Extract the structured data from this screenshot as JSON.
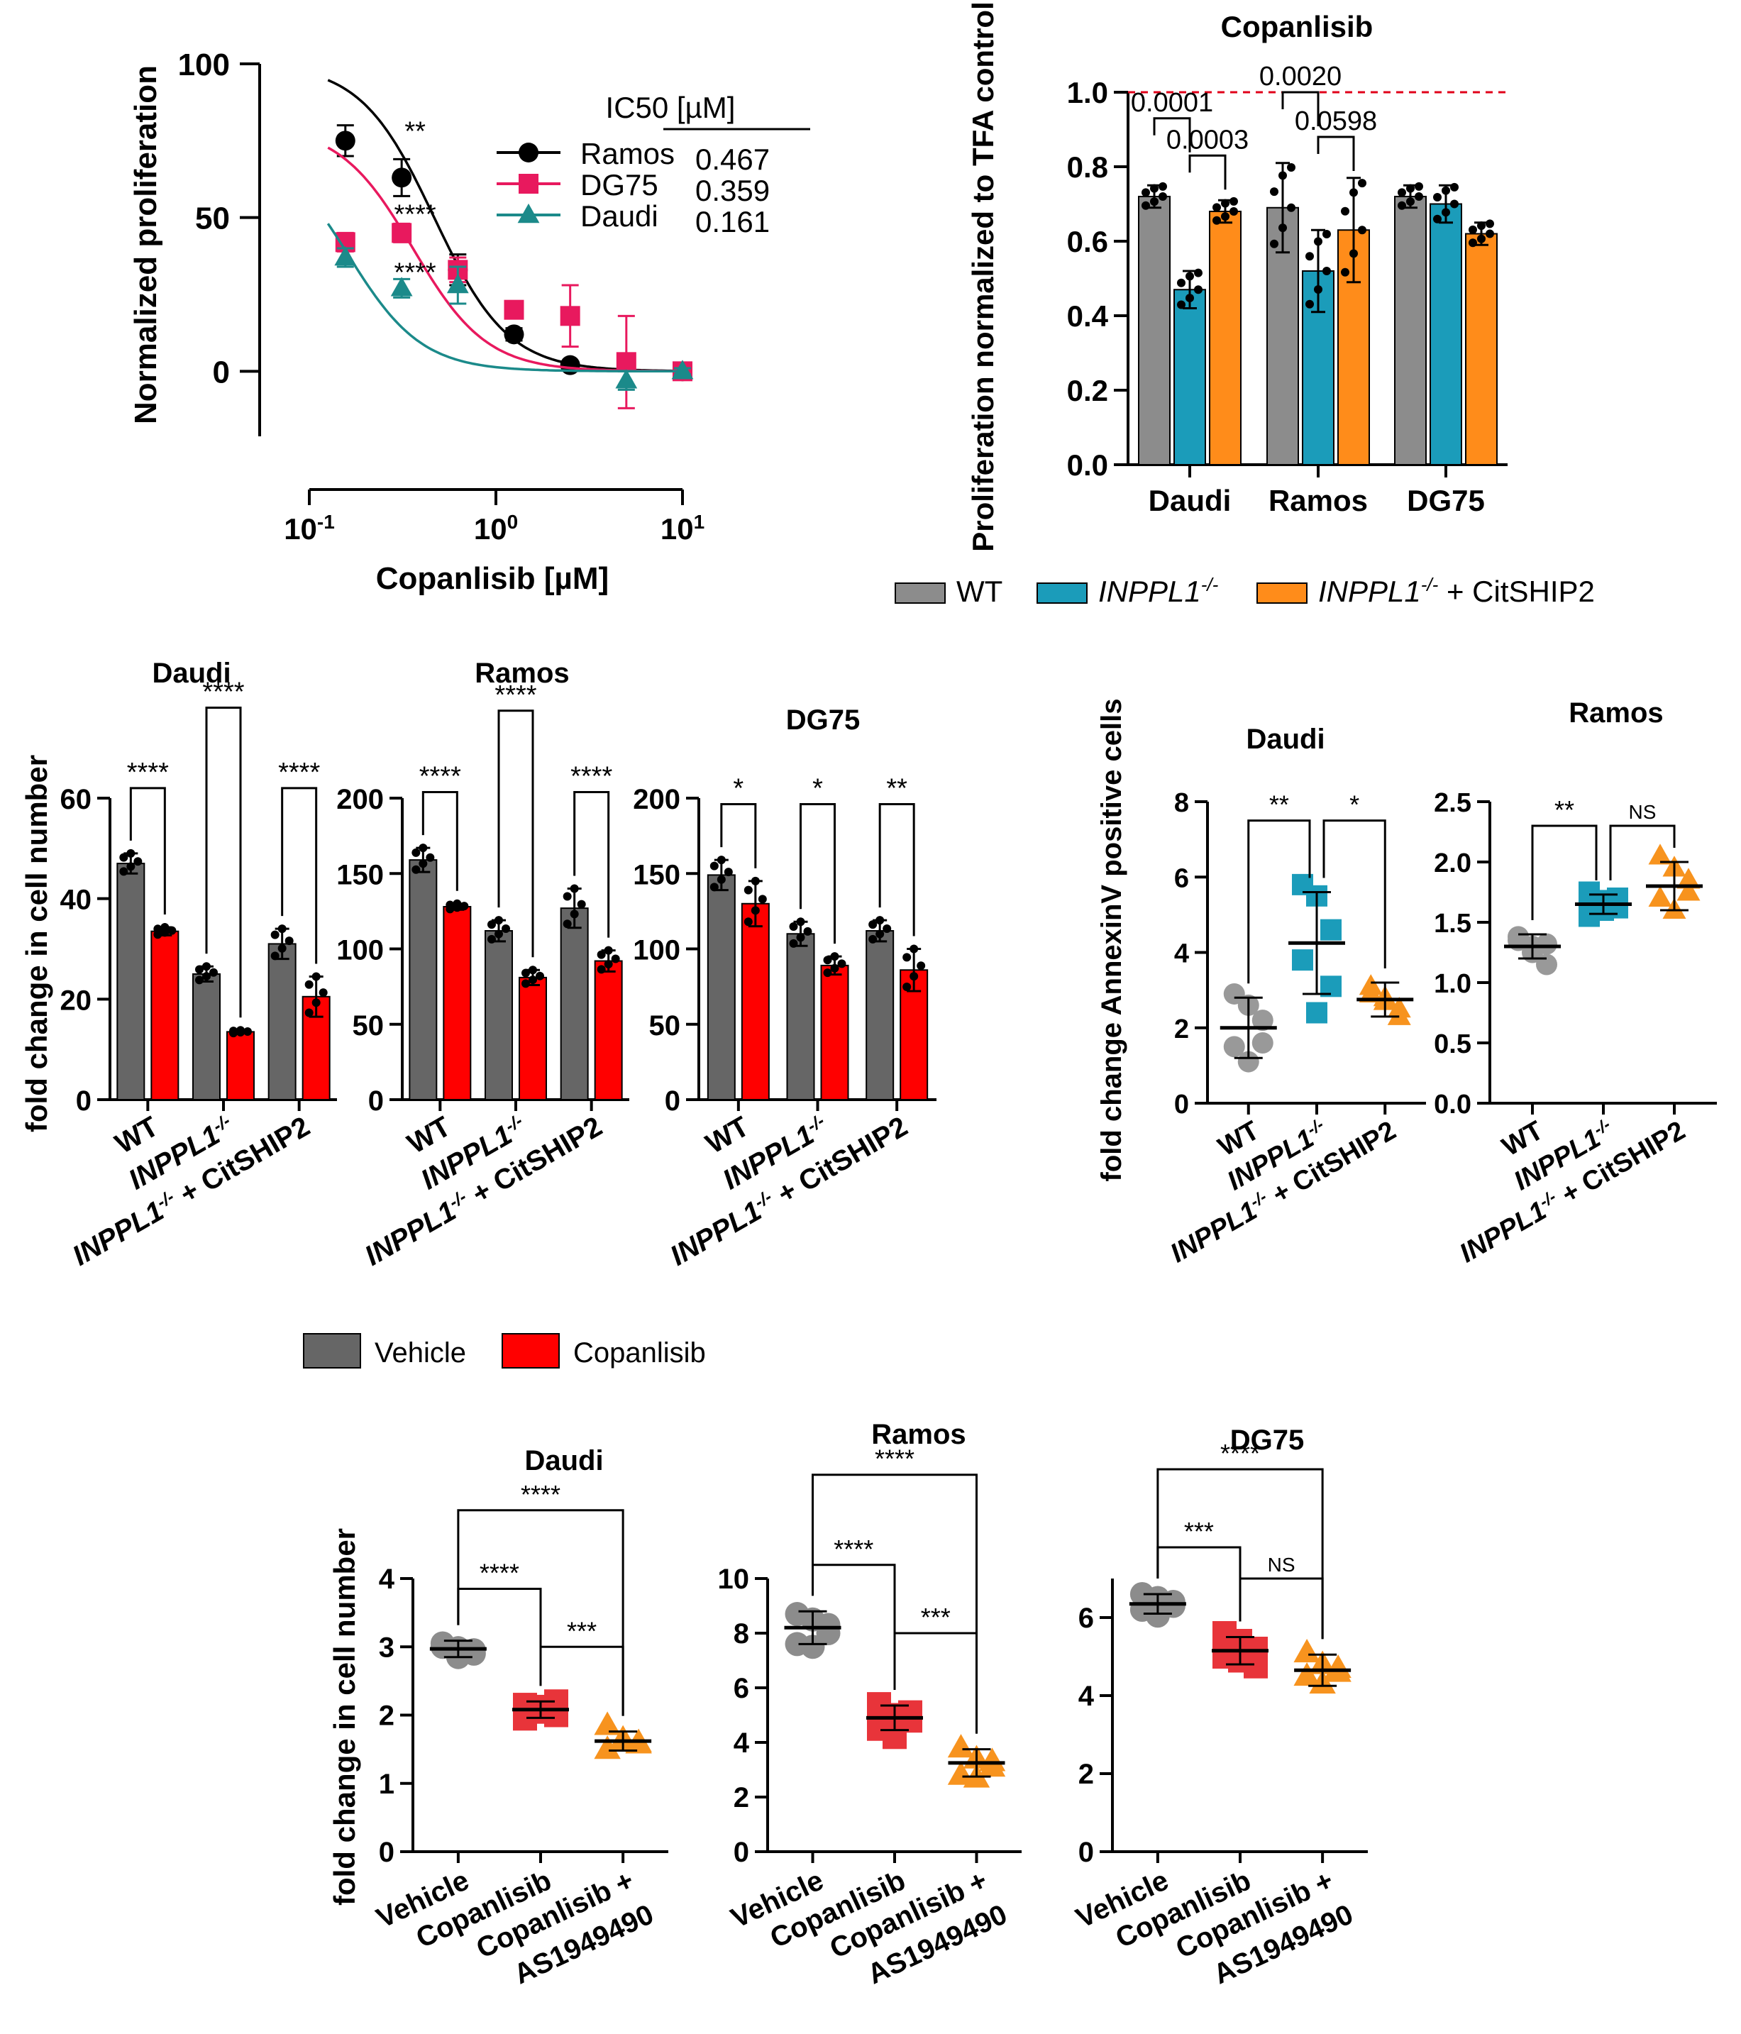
{
  "chart_data": [
    {
      "id": "ic50",
      "type": "scatter",
      "xscale": "log",
      "xlabel": "Copanlisib [µM]",
      "ylabel": "Normalized proliferation",
      "xlim": [
        0.1,
        10
      ],
      "ylim": [
        -20,
        100
      ],
      "yticks": [
        0,
        50,
        100
      ],
      "xticks": [
        {
          "base": "10",
          "exp": "-1"
        },
        {
          "base": "10",
          "exp": "0"
        },
        {
          "base": "10",
          "exp": "1"
        }
      ],
      "legend_header": "IC50 [µM]",
      "series": [
        {
          "name": "Ramos",
          "ic50": "0.467",
          "ic50_num": 0.467,
          "color": "#000000",
          "marker": "circle",
          "top": 100,
          "points": [
            [
              0.156,
              75,
              5
            ],
            [
              0.3125,
              63,
              6
            ],
            [
              0.625,
              33,
              5
            ],
            [
              1.25,
              12,
              2
            ],
            [
              2.5,
              2,
              1
            ],
            [
              10,
              0,
              1
            ]
          ]
        },
        {
          "name": "DG75",
          "ic50": "0.359",
          "ic50_num": 0.359,
          "color": "#e8195e",
          "marker": "square",
          "top": 80,
          "points": [
            [
              0.156,
              42,
              3
            ],
            [
              0.3125,
              45,
              3
            ],
            [
              0.625,
              33,
              4
            ],
            [
              1.25,
              20,
              2
            ],
            [
              2.5,
              18,
              10
            ],
            [
              5,
              3,
              15
            ],
            [
              10,
              0,
              1
            ]
          ]
        },
        {
          "name": "Daudi",
          "ic50": "0.161",
          "ic50_num": 0.161,
          "color": "#1b8a8a",
          "marker": "triangle",
          "top": 76,
          "points": [
            [
              0.156,
              37,
              3
            ],
            [
              0.3125,
              27,
              3
            ],
            [
              0.625,
              28,
              6
            ],
            [
              5,
              -3,
              3
            ],
            [
              10,
              0,
              1
            ]
          ]
        }
      ],
      "annotations": [
        {
          "text": "**",
          "x": 0.26,
          "y": 78
        },
        {
          "text": "****",
          "x": 0.26,
          "y": 51
        },
        {
          "text": "****",
          "x": 0.26,
          "y": 32
        }
      ]
    },
    {
      "id": "copanlisib_bars",
      "type": "bar",
      "title": "Copanlisib",
      "ylabel": "Proliferation normalized to TFA control",
      "ylim": [
        0,
        1.0
      ],
      "yticks": [
        "0.0",
        "0.2",
        "0.4",
        "0.6",
        "0.8",
        "1.0"
      ],
      "categories": [
        "Daudi",
        "Ramos",
        "DG75"
      ],
      "series": [
        {
          "name": "WT",
          "color": "#8c8c8c",
          "values": [
            0.72,
            0.69,
            0.72
          ],
          "err": [
            0.03,
            0.12,
            0.03
          ]
        },
        {
          "name": "INPPL1",
          "color": "#1b9cba",
          "values": [
            0.47,
            0.52,
            0.7
          ],
          "err": [
            0.05,
            0.11,
            0.05
          ]
        },
        {
          "name": "INPPL1 + CitSHIP2",
          "color": "#ff8c1a",
          "values": [
            0.68,
            0.63,
            0.62
          ],
          "err": [
            0.03,
            0.14,
            0.03
          ]
        }
      ],
      "pvalues": [
        {
          "text": "0.0001",
          "from": [
            0,
            0
          ],
          "to": [
            0,
            1
          ],
          "level": 0.93
        },
        {
          "text": "0.0003",
          "from": [
            0,
            1
          ],
          "to": [
            0,
            2
          ],
          "level": 0.83
        },
        {
          "text": "0.0020",
          "from": [
            1,
            0
          ],
          "to": [
            1,
            1
          ],
          "level": 1.0
        },
        {
          "text": "0.0598",
          "from": [
            1,
            1
          ],
          "to": [
            1,
            2
          ],
          "level": 0.88
        }
      ],
      "reference_line": 1.0,
      "legend": [
        {
          "main": "WT",
          "sup": "",
          "suffix": "",
          "color": "#8c8c8c"
        },
        {
          "main": "INPPL1",
          "sup": "-/-",
          "suffix": "",
          "color": "#1b9cba"
        },
        {
          "main": "INPPL1",
          "sup": "-/-",
          "suffix": " + CitSHIP2",
          "color": "#ff8c1a"
        }
      ]
    },
    {
      "id": "fold_change_bars",
      "type": "bar",
      "ylabel": "fold change in cell number",
      "genotype_labels": [
        {
          "main": "WT",
          "sup": "",
          "suffix": ""
        },
        {
          "main": "INPPL1",
          "sup": "-/-",
          "suffix": ""
        },
        {
          "main": "INPPL1",
          "sup": "-/-",
          "suffix": " + CitSHIP2"
        }
      ],
      "legend": [
        {
          "name": "Vehicle",
          "color": "#666666"
        },
        {
          "name": "Copanlisib",
          "color": "#ff0000"
        }
      ],
      "panels": [
        {
          "title": "Daudi",
          "ylim": [
            0,
            60
          ],
          "yticks": [
            "0",
            "20",
            "40",
            "60"
          ],
          "vehicle": [
            47,
            25,
            31
          ],
          "vehicle_err": [
            2,
            1.5,
            3
          ],
          "copanlisib": [
            33.5,
            13.5,
            20.5
          ],
          "copanlisib_err": [
            0.8,
            0.3,
            4
          ],
          "sig": [
            "****",
            "****",
            "****"
          ],
          "sig_top": [
            62,
            78,
            62
          ]
        },
        {
          "title": "Ramos",
          "ylim": [
            0,
            200
          ],
          "yticks": [
            "0",
            "50",
            "100",
            "150",
            "200"
          ],
          "vehicle": [
            159,
            112,
            127
          ],
          "vehicle_err": [
            8,
            7,
            13
          ],
          "copanlisib": [
            128,
            81,
            92
          ],
          "copanlisib_err": [
            2,
            5,
            7
          ],
          "sig": [
            "****",
            "****",
            "****"
          ],
          "sig_top": [
            204,
            258,
            204
          ]
        },
        {
          "title": "DG75",
          "ylim": [
            0,
            200
          ],
          "yticks": [
            "0",
            "50",
            "100",
            "150",
            "200"
          ],
          "vehicle": [
            149,
            110,
            112
          ],
          "vehicle_err": [
            10,
            8,
            7
          ],
          "copanlisib": [
            130,
            89,
            86
          ],
          "copanlisib_err": [
            15,
            6,
            14
          ],
          "sig": [
            "*",
            "*",
            "**"
          ],
          "sig_top": [
            196,
            196,
            196
          ]
        }
      ]
    },
    {
      "id": "annexin_scatter",
      "type": "scatter",
      "ylabel": "fold change AnnexinV positive cells",
      "genotype_labels": [
        {
          "main": "WT",
          "sup": "",
          "suffix": ""
        },
        {
          "main": "INPPL1",
          "sup": "-/-",
          "suffix": ""
        },
        {
          "main": "INPPL1",
          "sup": "-/-",
          "suffix": " + CitSHIP2"
        }
      ],
      "colors": [
        "#999999",
        "#1b9cba",
        "#f7931e"
      ],
      "panels": [
        {
          "title": "Daudi",
          "ylim": [
            0,
            8
          ],
          "yticks": [
            "0",
            "2",
            "4",
            "6",
            "8"
          ],
          "means": [
            2.0,
            4.25,
            2.75
          ],
          "sds": [
            0.8,
            1.35,
            0.45
          ],
          "points": [
            [
              2.9,
              2.6,
              1.6,
              1.5,
              1.1,
              2.2
            ],
            [
              5.8,
              5.5,
              4.6,
              3.8,
              2.4,
              3.1
            ],
            [
              3.1,
              2.8,
              2.3,
              2.9,
              2.7,
              2.5
            ]
          ],
          "sig": [
            {
              "text": "**",
              "a": 0,
              "b": 1,
              "level": 7.5
            },
            {
              "text": "*",
              "a": 1,
              "b": 2,
              "level": 7.5
            }
          ]
        },
        {
          "title": "Ramos",
          "ylim": [
            0,
            2.5
          ],
          "yticks": [
            "0.0",
            "0.5",
            "1.0",
            "1.5",
            "2.0",
            "2.5"
          ],
          "means": [
            1.3,
            1.65,
            1.8
          ],
          "sds": [
            0.1,
            0.08,
            0.2
          ],
          "points": [
            [
              1.35,
              1.25,
              1.15,
              1.38,
              1.3,
              1.32
            ],
            [
              1.75,
              1.6,
              1.7,
              1.55,
              1.68,
              1.62
            ],
            [
              2.05,
              1.95,
              1.85,
              1.7,
              1.6,
              1.75
            ]
          ],
          "sig": [
            {
              "text": "**",
              "a": 0,
              "b": 1,
              "level": 2.3
            },
            {
              "text": "NS",
              "a": 1,
              "b": 2,
              "level": 2.3
            }
          ]
        }
      ]
    },
    {
      "id": "as1949490_scatter",
      "type": "scatter",
      "ylabel": "fold change in cell number",
      "groups": [
        "Vehicle",
        "Copanlisib",
        "Copanlisib + AS1949490"
      ],
      "group_lines": [
        [
          "Vehicle"
        ],
        [
          "Copanlisib"
        ],
        [
          "Copanlisib +",
          "AS1949490"
        ]
      ],
      "colors": [
        "#8c8c8c",
        "#e8343a",
        "#f7931e"
      ],
      "markers": [
        "circle",
        "square",
        "triangle"
      ],
      "panels": [
        {
          "title": "Daudi",
          "ylim": [
            0,
            4
          ],
          "yticks": [
            "0",
            "1",
            "2",
            "3",
            "4"
          ],
          "means": [
            2.97,
            2.08,
            1.62
          ],
          "sds": [
            0.12,
            0.12,
            0.14
          ],
          "points": [
            [
              3.05,
              2.98,
              2.9,
              3.0,
              2.85,
              2.95
            ],
            [
              2.15,
              2.05,
              2.0,
              1.95,
              2.12,
              2.2
            ],
            [
              1.85,
              1.65,
              1.58,
              1.5,
              1.62,
              1.6
            ]
          ],
          "sig": [
            {
              "text": "****",
              "a": 0,
              "b": 1,
              "level": 3.85
            },
            {
              "text": "***",
              "a": 1,
              "b": 2,
              "level": 3.0
            },
            {
              "text": "****",
              "a": 0,
              "b": 2,
              "level": 5.0
            }
          ]
        },
        {
          "title": "Ramos",
          "ylim": [
            0,
            10
          ],
          "yticks": [
            "0",
            "2",
            "4",
            "6",
            "8",
            "10"
          ],
          "means": [
            8.2,
            4.9,
            3.25
          ],
          "sds": [
            0.6,
            0.45,
            0.5
          ],
          "points": [
            [
              8.7,
              8.5,
              8.0,
              7.6,
              7.5,
              8.3
            ],
            [
              5.4,
              5.0,
              4.8,
              4.5,
              4.2,
              5.1
            ],
            [
              3.8,
              3.4,
              3.1,
              2.8,
              2.7,
              3.3
            ]
          ],
          "sig": [
            {
              "text": "****",
              "a": 0,
              "b": 1,
              "level": 10.5
            },
            {
              "text": "***",
              "a": 1,
              "b": 2,
              "level": 8.0
            },
            {
              "text": "****",
              "a": 0,
              "b": 2,
              "level": 13.8
            }
          ]
        },
        {
          "title": "DG75",
          "ylim": [
            0,
            7
          ],
          "yticks": [
            "0",
            "2",
            "4",
            "6"
          ],
          "means": [
            6.35,
            5.15,
            4.65
          ],
          "sds": [
            0.25,
            0.35,
            0.4
          ],
          "points": [
            [
              6.6,
              6.5,
              6.3,
              6.2,
              6.05,
              6.4
            ],
            [
              5.6,
              5.4,
              5.2,
              5.0,
              4.9,
              4.75
            ],
            [
              5.1,
              4.8,
              4.6,
              4.5,
              4.3,
              4.7
            ]
          ],
          "sig": [
            {
              "text": "***",
              "a": 0,
              "b": 1,
              "level": 7.8
            },
            {
              "text": "NS",
              "a": 1,
              "b": 2,
              "level": 7.0
            },
            {
              "text": "****",
              "a": 0,
              "b": 2,
              "level": 9.8
            }
          ]
        }
      ]
    }
  ]
}
